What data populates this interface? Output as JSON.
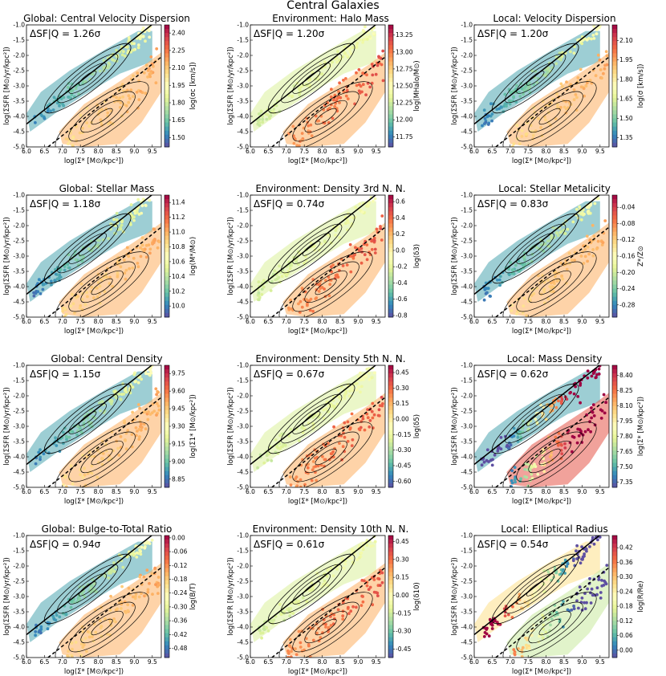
{
  "suptitle": "Central Galaxies",
  "axes": {
    "xlabel": "log(Σ* [M⊙/kpc²])",
    "ylabel": "log(ΣSFR [M⊙/yr/kpc²])",
    "x_ticks": [
      "6.0",
      "6.5",
      "7.0",
      "7.5",
      "8.0",
      "8.5",
      "9.0",
      "9.5"
    ],
    "y_ticks": [
      "-1.0",
      "-1.5",
      "-2.0",
      "-2.5",
      "-3.0",
      "-3.5",
      "-4.0",
      "-4.5",
      "-5.0"
    ]
  },
  "colors": {
    "low": "#5e4fa2",
    "mid": "#ffffbf",
    "high": "#9e0142",
    "sf_bg": "#b8e0a0",
    "q_bg": "#f6a36a"
  },
  "chart_data": [
    {
      "type": "scatter",
      "title": "Global: Central Velocity Dispersion",
      "delta": "ΔSF|Q = 1.26σ",
      "cbar_label": "log(σc [km/s])",
      "cbar_ticks": [
        "2.40",
        "2.25",
        "2.10",
        "1.95",
        "1.80",
        "1.65",
        "1.50"
      ],
      "cbar_range": [
        1.42,
        2.47
      ],
      "xlim": [
        6.0,
        9.75
      ],
      "ylim": [
        -5.0,
        -1.0
      ],
      "trend": "sf_low_q_high"
    },
    {
      "type": "scatter",
      "title": "Environment: Halo Mass",
      "delta": "ΔSF|Q = 1.20σ",
      "cbar_label": "log(MHalo/M⊙)",
      "cbar_ticks": [
        "13.25",
        "13.00",
        "12.75",
        "12.50",
        "12.25",
        "12.00",
        "11.75"
      ],
      "cbar_range": [
        11.6,
        13.4
      ],
      "xlim": [
        6.0,
        9.75
      ],
      "ylim": [
        -5.0,
        -1.0
      ],
      "trend": "sf_mid_q_high"
    },
    {
      "type": "scatter",
      "title": "Local: Velocity Dispersion",
      "delta": "ΔSF|Q = 1.20σ",
      "cbar_label": "log(σ [km/s])",
      "cbar_ticks": [
        "2.10",
        "1.95",
        "1.80",
        "1.65",
        "1.50",
        "1.35"
      ],
      "cbar_range": [
        1.28,
        2.22
      ],
      "xlim": [
        6.0,
        9.75
      ],
      "ylim": [
        -5.0,
        -1.0
      ],
      "trend": "sf_low_q_high"
    },
    {
      "type": "scatter",
      "title": "Global: Stellar Mass",
      "delta": "ΔSF|Q = 1.18σ",
      "cbar_label": "log(M*/M⊙)",
      "cbar_ticks": [
        "11.4",
        "11.2",
        "11.0",
        "10.8",
        "10.6",
        "10.4",
        "10.2",
        "10.0"
      ],
      "cbar_range": [
        9.85,
        11.5
      ],
      "xlim": [
        6.0,
        9.75
      ],
      "ylim": [
        -5.0,
        -1.0
      ],
      "trend": "sf_low_q_high"
    },
    {
      "type": "scatter",
      "title": "Environment: Density 3rd N. N.",
      "delta": "ΔSF|Q = 0.74σ",
      "cbar_label": "log(δ3)",
      "cbar_ticks": [
        "0.6",
        "0.4",
        "0.2",
        "0.0",
        "-0.2",
        "-0.4",
        "-0.6",
        "-0.8"
      ],
      "cbar_range": [
        -0.82,
        0.68
      ],
      "xlim": [
        6.0,
        9.75
      ],
      "ylim": [
        -5.0,
        -1.0
      ],
      "trend": "sf_mid_q_high"
    },
    {
      "type": "scatter",
      "title": "Local: Stellar Metalicity",
      "delta": "ΔSF|Q = 0.83σ",
      "cbar_label": "Z*/Z⊙",
      "cbar_ticks": [
        "-0.04",
        "-0.08",
        "-0.12",
        "-0.16",
        "-0.20",
        "-0.24",
        "-0.28"
      ],
      "cbar_range": [
        -0.31,
        -0.01
      ],
      "xlim": [
        6.0,
        9.75
      ],
      "ylim": [
        -5.0,
        -1.0
      ],
      "trend": "sf_low_q_high"
    },
    {
      "type": "scatter",
      "title": "Global: Central Density",
      "delta": "ΔSF|Q = 1.15σ",
      "cbar_label": "log(Σ1* [M⊙/kpc²])",
      "cbar_ticks": [
        "9.75",
        "9.60",
        "9.45",
        "9.30",
        "9.15",
        "9.00",
        "8.85"
      ],
      "cbar_range": [
        8.78,
        9.82
      ],
      "xlim": [
        6.0,
        9.75
      ],
      "ylim": [
        -5.0,
        -1.0
      ],
      "trend": "sf_low_q_high"
    },
    {
      "type": "scatter",
      "title": "Environment: Density 5th N. N.",
      "delta": "ΔSF|Q = 0.67σ",
      "cbar_label": "log(δ5)",
      "cbar_ticks": [
        "0.45",
        "0.30",
        "0.15",
        "0.00",
        "-0.15",
        "-0.30",
        "-0.45",
        "-0.60"
      ],
      "cbar_range": [
        -0.66,
        0.52
      ],
      "xlim": [
        6.0,
        9.75
      ],
      "ylim": [
        -5.0,
        -1.0
      ],
      "trend": "sf_mid_q_high"
    },
    {
      "type": "scatter",
      "title": "Local: Mass Density",
      "delta": "ΔSF|Q = 0.62σ",
      "cbar_label": "log(Σ* [M⊙/kpc²])",
      "cbar_ticks": [
        "8.40",
        "8.25",
        "8.10",
        "7.95",
        "7.80",
        "7.65",
        "7.50",
        "7.35"
      ],
      "cbar_range": [
        7.3,
        8.5
      ],
      "xlim": [
        6.0,
        9.75
      ],
      "ylim": [
        -5.0,
        -1.0
      ],
      "trend": "x_increasing"
    },
    {
      "type": "scatter",
      "title": "Global: Bulge-to-Total Ratio",
      "delta": "ΔSF|Q = 0.94σ",
      "cbar_label": "log(B/T)",
      "cbar_ticks": [
        "0.00",
        "-0.06",
        "-0.12",
        "-0.18",
        "-0.24",
        "-0.30",
        "-0.36",
        "-0.42",
        "-0.48"
      ],
      "cbar_range": [
        -0.52,
        0.01
      ],
      "xlim": [
        6.0,
        9.75
      ],
      "ylim": [
        -5.0,
        -1.0
      ],
      "trend": "sf_low_q_high"
    },
    {
      "type": "scatter",
      "title": "Environment: Density 10th N. N.",
      "delta": "ΔSF|Q = 0.61σ",
      "cbar_label": "log(δ10)",
      "cbar_ticks": [
        "0.45",
        "0.30",
        "0.15",
        "0.00",
        "-0.15",
        "-0.30",
        "-0.45"
      ],
      "cbar_range": [
        -0.52,
        0.5
      ],
      "xlim": [
        6.0,
        9.75
      ],
      "ylim": [
        -5.0,
        -1.0
      ],
      "trend": "sf_mid_q_high"
    },
    {
      "type": "scatter",
      "title": "Local: Elliptical Radius",
      "delta": "ΔSF|Q = 0.54σ",
      "cbar_label": "log(R/Re)",
      "cbar_ticks": [
        "0.42",
        "0.36",
        "0.30",
        "0.24",
        "0.18",
        "0.12",
        "0.06",
        "0.00"
      ],
      "cbar_range": [
        -0.03,
        0.47
      ],
      "xlim": [
        6.0,
        9.75
      ],
      "ylim": [
        -5.0,
        -1.0
      ],
      "trend": "x_decreasing"
    }
  ]
}
